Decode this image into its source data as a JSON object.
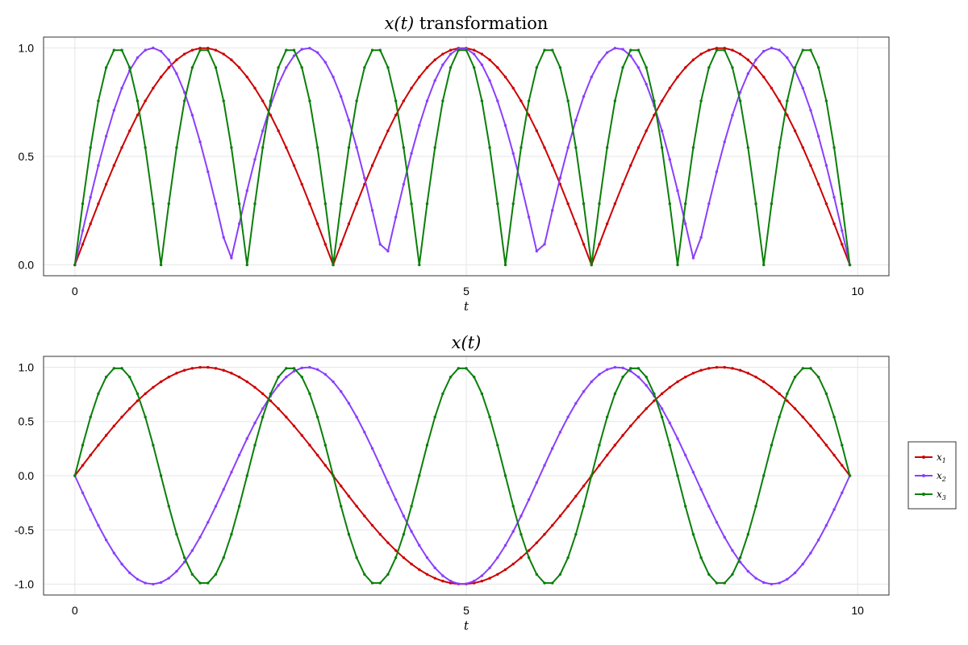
{
  "colors": {
    "x1": "#cc0000",
    "x2": "#8a3ffc",
    "x3": "#0a7f0a"
  },
  "legend": {
    "placement": "right",
    "entries": [
      {
        "series": "x1",
        "base": "x",
        "sub": "1"
      },
      {
        "series": "x2",
        "base": "x",
        "sub": "2"
      },
      {
        "series": "x3",
        "base": "x",
        "sub": "3"
      }
    ]
  },
  "chart_data": [
    {
      "type": "line",
      "title": {
        "math": "x(t)",
        "text": " transformation"
      },
      "xlabel": "t",
      "ylabel": "",
      "xlim": [
        -0.4,
        10.4
      ],
      "ylim": [
        -0.05,
        1.05
      ],
      "xticks": [
        0,
        5,
        10
      ],
      "xtick_labels": [
        "0",
        "5",
        "10"
      ],
      "yticks": [
        0,
        0.5,
        1.0
      ],
      "ytick_labels": [
        "0.0",
        "0.5",
        "1.0"
      ],
      "grid": true,
      "markers": true,
      "x": {
        "start": 0,
        "stop": 9.9,
        "step": 0.1
      },
      "series": [
        {
          "id": "x1",
          "fn": "abs_sin",
          "freq": 0.9519978
        },
        {
          "id": "x2",
          "fn": "abs_sin",
          "freq": 1.586663
        },
        {
          "id": "x3",
          "fn": "abs_sin",
          "freq": 2.8559934
        }
      ]
    },
    {
      "type": "line",
      "title": {
        "math": "x(t)",
        "text": ""
      },
      "xlabel": "t",
      "ylabel": "",
      "xlim": [
        -0.4,
        10.4
      ],
      "ylim": [
        -1.1,
        1.1
      ],
      "xticks": [
        0,
        5,
        10
      ],
      "xtick_labels": [
        "0",
        "5",
        "10"
      ],
      "yticks": [
        -1.0,
        -0.5,
        0.0,
        0.5,
        1.0
      ],
      "ytick_labels": [
        "-1.0",
        "-0.5",
        "0.0",
        "0.5",
        "1.0"
      ],
      "grid": true,
      "markers": true,
      "x": {
        "start": 0,
        "stop": 9.9,
        "step": 0.1
      },
      "series": [
        {
          "id": "x1",
          "fn": "sin",
          "amp": 1,
          "freq": 0.9519978
        },
        {
          "id": "x2",
          "fn": "sin",
          "amp": -1,
          "freq": 1.586663
        },
        {
          "id": "x3",
          "fn": "sin",
          "amp": 1,
          "freq": 2.8559934
        }
      ]
    }
  ]
}
